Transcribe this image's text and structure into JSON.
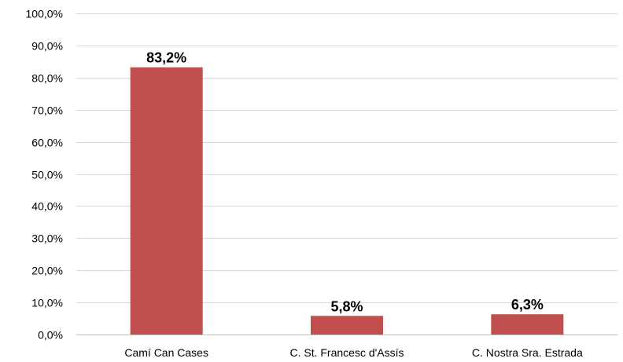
{
  "chart_data": {
    "type": "bar",
    "categories": [
      "Camí Can Cases",
      "C. St. Francesc d'Assís",
      "C. Nostra Sra. Estrada"
    ],
    "values": [
      83.2,
      5.8,
      6.3
    ],
    "data_labels": [
      "83,2%",
      "5,8%",
      "6,3%"
    ],
    "title": "",
    "xlabel": "",
    "ylabel": "",
    "ylim": [
      0,
      100
    ],
    "yticks": [
      0,
      10,
      20,
      30,
      40,
      50,
      60,
      70,
      80,
      90,
      100
    ],
    "ytick_labels": [
      "0,0%",
      "10,0%",
      "20,0%",
      "30,0%",
      "40,0%",
      "50,0%",
      "60,0%",
      "70,0%",
      "80,0%",
      "90,0%",
      "100,0%"
    ],
    "grid": true,
    "legend": "none",
    "bar_color": "#c0504d"
  }
}
